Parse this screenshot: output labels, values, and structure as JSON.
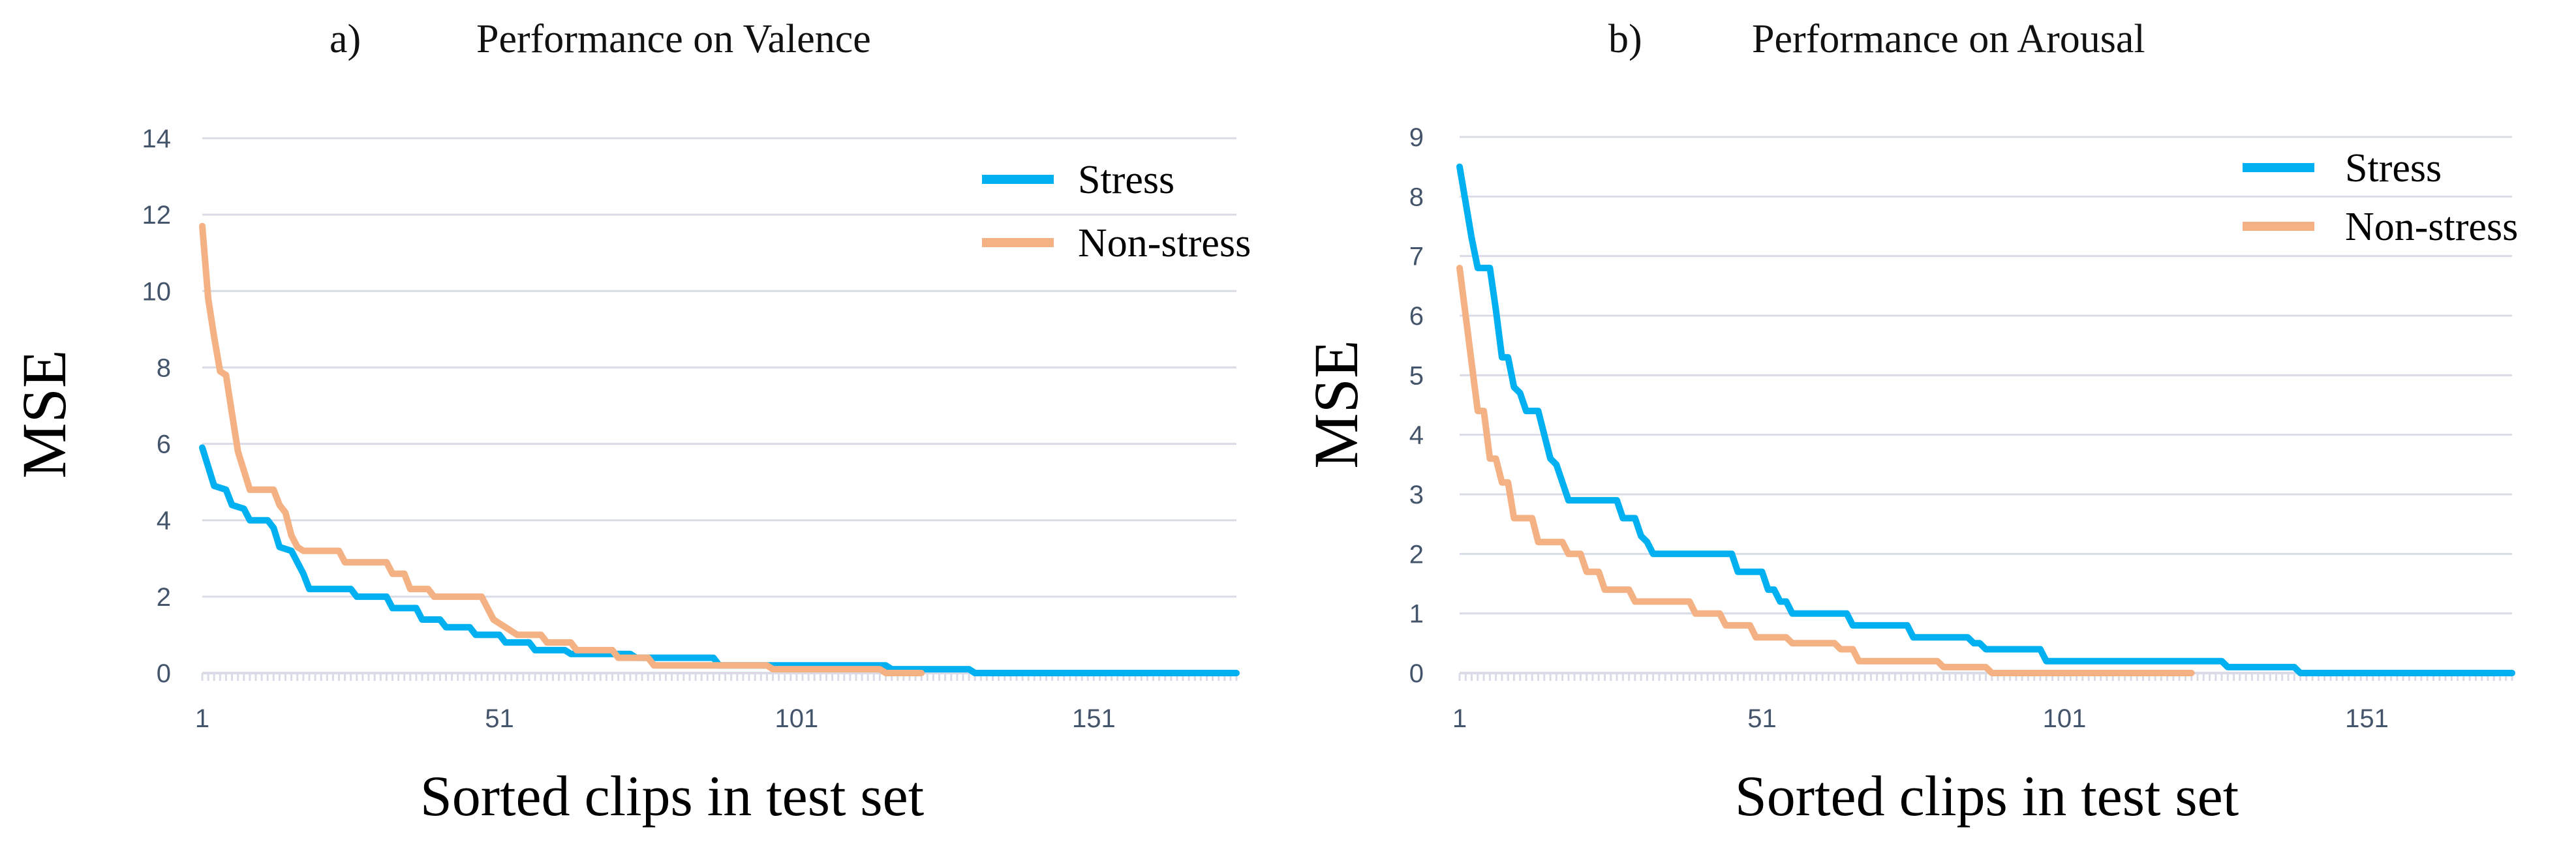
{
  "colors": {
    "stress": "#00b0f0",
    "non_stress": "#f4b183",
    "grid": "#d9dce6",
    "tick_text": "#44546a",
    "text": "#000000"
  },
  "chart_data": [
    {
      "type": "line",
      "panel": "a)",
      "title": "Performance on Valence",
      "xlabel": "Sorted clips in test set",
      "ylabel": "MSE",
      "xlim": [
        1,
        175
      ],
      "ylim": [
        0,
        14
      ],
      "xticks": [
        1,
        51,
        101,
        151
      ],
      "yticks": [
        0,
        2,
        4,
        6,
        8,
        10,
        12,
        14
      ],
      "grid": true,
      "legend": "top-right",
      "series": [
        {
          "name": "Stress",
          "color_key": "stress",
          "points": [
            [
              1,
              5.9
            ],
            [
              2,
              5.4
            ],
            [
              3,
              4.9
            ],
            [
              5,
              4.8
            ],
            [
              6,
              4.4
            ],
            [
              8,
              4.3
            ],
            [
              9,
              4.0
            ],
            [
              12,
              4.0
            ],
            [
              13,
              3.8
            ],
            [
              14,
              3.3
            ],
            [
              16,
              3.2
            ],
            [
              17,
              2.9
            ],
            [
              18,
              2.6
            ],
            [
              19,
              2.2
            ],
            [
              26,
              2.2
            ],
            [
              27,
              2.0
            ],
            [
              32,
              2.0
            ],
            [
              33,
              1.7
            ],
            [
              37,
              1.7
            ],
            [
              38,
              1.4
            ],
            [
              41,
              1.4
            ],
            [
              42,
              1.2
            ],
            [
              46,
              1.2
            ],
            [
              47,
              1.0
            ],
            [
              51,
              1.0
            ],
            [
              52,
              0.8
            ],
            [
              56,
              0.8
            ],
            [
              57,
              0.6
            ],
            [
              62,
              0.6
            ],
            [
              63,
              0.5
            ],
            [
              73,
              0.5
            ],
            [
              74,
              0.4
            ],
            [
              87,
              0.4
            ],
            [
              88,
              0.2
            ],
            [
              116,
              0.2
            ],
            [
              117,
              0.1
            ],
            [
              130,
              0.1
            ],
            [
              131,
              0.0
            ],
            [
              175,
              0.0
            ]
          ]
        },
        {
          "name": "Non-stress",
          "color_key": "non_stress",
          "points": [
            [
              1,
              11.7
            ],
            [
              2,
              9.8
            ],
            [
              3,
              8.8
            ],
            [
              4,
              7.9
            ],
            [
              5,
              7.8
            ],
            [
              6,
              6.8
            ],
            [
              7,
              5.8
            ],
            [
              8,
              5.3
            ],
            [
              9,
              4.8
            ],
            [
              13,
              4.8
            ],
            [
              14,
              4.4
            ],
            [
              15,
              4.2
            ],
            [
              16,
              3.6
            ],
            [
              17,
              3.3
            ],
            [
              18,
              3.2
            ],
            [
              24,
              3.2
            ],
            [
              25,
              2.9
            ],
            [
              32,
              2.9
            ],
            [
              33,
              2.6
            ],
            [
              35,
              2.6
            ],
            [
              36,
              2.2
            ],
            [
              39,
              2.2
            ],
            [
              40,
              2.0
            ],
            [
              48,
              2.0
            ],
            [
              49,
              1.7
            ],
            [
              50,
              1.4
            ],
            [
              51,
              1.3
            ],
            [
              52,
              1.2
            ],
            [
              54,
              1.0
            ],
            [
              58,
              1.0
            ],
            [
              59,
              0.8
            ],
            [
              63,
              0.8
            ],
            [
              64,
              0.6
            ],
            [
              70,
              0.6
            ],
            [
              71,
              0.4
            ],
            [
              76,
              0.4
            ],
            [
              77,
              0.2
            ],
            [
              96,
              0.2
            ],
            [
              97,
              0.1
            ],
            [
              115,
              0.1
            ],
            [
              116,
              0.0
            ],
            [
              122,
              0.0
            ]
          ]
        }
      ]
    },
    {
      "type": "line",
      "panel": "b)",
      "title": "Performance on Arousal",
      "xlabel": "Sorted clips in test set",
      "ylabel": "MSE",
      "xlim": [
        1,
        175
      ],
      "ylim": [
        0,
        9
      ],
      "xticks": [
        1,
        51,
        101,
        151
      ],
      "yticks": [
        0,
        1,
        2,
        3,
        4,
        5,
        6,
        7,
        8,
        9
      ],
      "grid": true,
      "legend": "top-right",
      "series": [
        {
          "name": "Stress",
          "color_key": "stress",
          "points": [
            [
              1,
              8.5
            ],
            [
              2,
              7.9
            ],
            [
              3,
              7.3
            ],
            [
              4,
              6.8
            ],
            [
              6,
              6.8
            ],
            [
              7,
              6.1
            ],
            [
              8,
              5.3
            ],
            [
              9,
              5.3
            ],
            [
              10,
              4.8
            ],
            [
              11,
              4.7
            ],
            [
              12,
              4.4
            ],
            [
              14,
              4.4
            ],
            [
              15,
              4.0
            ],
            [
              16,
              3.6
            ],
            [
              17,
              3.5
            ],
            [
              18,
              3.2
            ],
            [
              19,
              2.9
            ],
            [
              27,
              2.9
            ],
            [
              28,
              2.6
            ],
            [
              30,
              2.6
            ],
            [
              31,
              2.3
            ],
            [
              32,
              2.2
            ],
            [
              33,
              2.0
            ],
            [
              46,
              2.0
            ],
            [
              47,
              1.7
            ],
            [
              51,
              1.7
            ],
            [
              52,
              1.4
            ],
            [
              53,
              1.4
            ],
            [
              54,
              1.2
            ],
            [
              55,
              1.2
            ],
            [
              56,
              1.0
            ],
            [
              65,
              1.0
            ],
            [
              66,
              0.8
            ],
            [
              75,
              0.8
            ],
            [
              76,
              0.6
            ],
            [
              85,
              0.6
            ],
            [
              86,
              0.5
            ],
            [
              87,
              0.5
            ],
            [
              88,
              0.4
            ],
            [
              97,
              0.4
            ],
            [
              98,
              0.2
            ],
            [
              127,
              0.2
            ],
            [
              128,
              0.1
            ],
            [
              139,
              0.1
            ],
            [
              140,
              0.0
            ],
            [
              175,
              0.0
            ]
          ]
        },
        {
          "name": "Non-stress",
          "color_key": "non_stress",
          "points": [
            [
              1,
              6.8
            ],
            [
              2,
              6.0
            ],
            [
              3,
              5.2
            ],
            [
              4,
              4.4
            ],
            [
              5,
              4.4
            ],
            [
              6,
              3.6
            ],
            [
              7,
              3.6
            ],
            [
              8,
              3.2
            ],
            [
              9,
              3.2
            ],
            [
              10,
              2.6
            ],
            [
              13,
              2.6
            ],
            [
              14,
              2.2
            ],
            [
              18,
              2.2
            ],
            [
              19,
              2.0
            ],
            [
              21,
              2.0
            ],
            [
              22,
              1.7
            ],
            [
              24,
              1.7
            ],
            [
              25,
              1.4
            ],
            [
              29,
              1.4
            ],
            [
              30,
              1.2
            ],
            [
              39,
              1.2
            ],
            [
              40,
              1.0
            ],
            [
              44,
              1.0
            ],
            [
              45,
              0.8
            ],
            [
              49,
              0.8
            ],
            [
              50,
              0.6
            ],
            [
              55,
              0.6
            ],
            [
              56,
              0.5
            ],
            [
              63,
              0.5
            ],
            [
              64,
              0.4
            ],
            [
              66,
              0.4
            ],
            [
              67,
              0.2
            ],
            [
              80,
              0.2
            ],
            [
              81,
              0.1
            ],
            [
              88,
              0.1
            ],
            [
              89,
              0.0
            ],
            [
              122,
              0.0
            ]
          ]
        }
      ]
    }
  ]
}
